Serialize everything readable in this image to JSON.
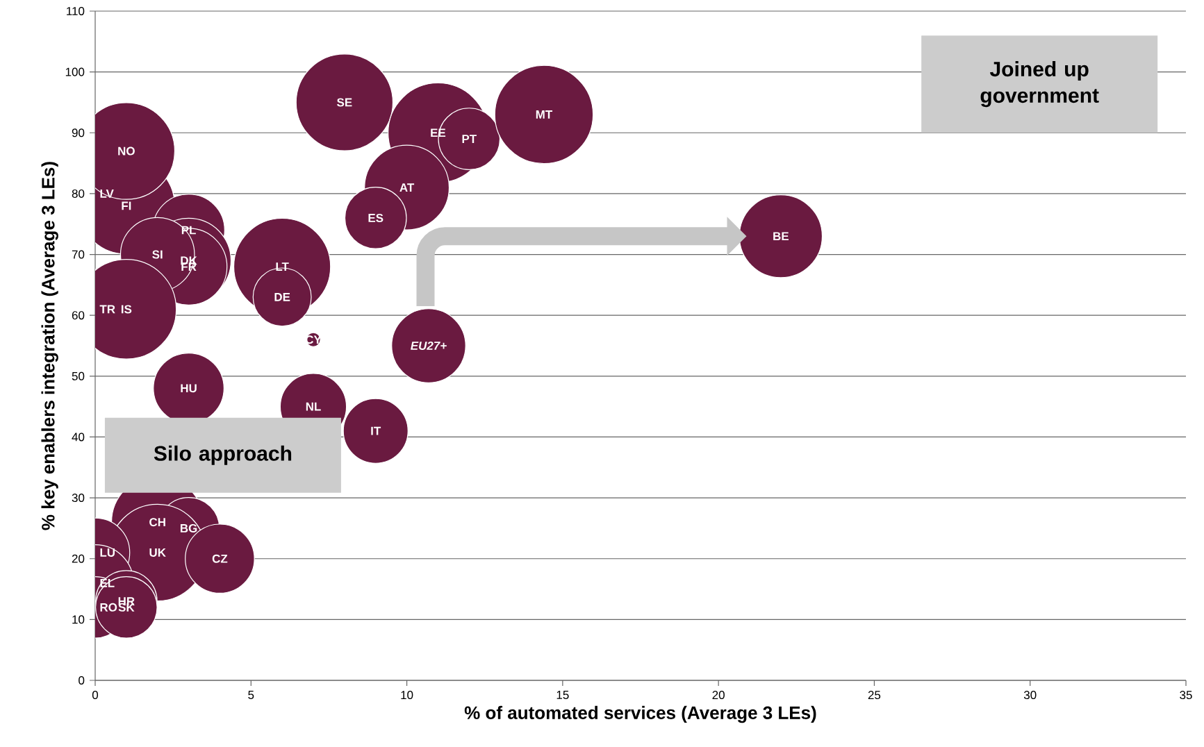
{
  "chart_data": {
    "type": "bubble",
    "xlabel": "% of automated services (Average 3 LEs)",
    "ylabel": "% key enablers integration (Average 3 LEs)",
    "xlim": [
      0,
      35
    ],
    "ylim": [
      0,
      110
    ],
    "xticks": [
      0,
      5,
      10,
      15,
      20,
      25,
      30,
      35
    ],
    "yticks": [
      0,
      10,
      20,
      30,
      40,
      50,
      60,
      70,
      80,
      90,
      100,
      110
    ],
    "grid": "y",
    "series": [
      {
        "color": "#6a1a40",
        "x": [
          8,
          11,
          12,
          14.4,
          10,
          9,
          22,
          0,
          1,
          1,
          3,
          3,
          3,
          2,
          6,
          6,
          0,
          1,
          7,
          10.7,
          3,
          7,
          9,
          2,
          3,
          2,
          4,
          0,
          0,
          0,
          1,
          1
        ],
        "values": [
          95,
          90,
          89,
          93,
          81,
          76,
          73,
          80,
          78,
          87,
          74,
          69,
          68,
          70,
          68,
          63,
          61,
          61,
          56,
          55,
          48,
          45,
          41,
          26,
          25,
          21,
          20,
          21,
          16,
          12,
          13,
          12
        ],
        "sizes": [
          0.94,
          1,
          0.38,
          0.97,
          0.72,
          0.38,
          0.69,
          0.66,
          0.94,
          0.94,
          0.52,
          0.72,
          0.59,
          0.55,
          0.94,
          0.34,
          0.64,
          1,
          0.02,
          0.55,
          0.5,
          0.44,
          0.42,
          0.85,
          0.38,
          0.94,
          0.48,
          0.48,
          0.59,
          0.38,
          0.38,
          0.38
        ]
      }
    ],
    "annotations": [
      {
        "text": "SE",
        "x": 8,
        "y": 95
      },
      {
        "text": "EE",
        "x": 11,
        "y": 90
      },
      {
        "text": "PT",
        "x": 12,
        "y": 89
      },
      {
        "text": "MT",
        "x": 14.4,
        "y": 93
      },
      {
        "text": "AT",
        "x": 10,
        "y": 81
      },
      {
        "text": "ES",
        "x": 9,
        "y": 76
      },
      {
        "text": "BE",
        "x": 22,
        "y": 73
      },
      {
        "text": "LV",
        "x": 0,
        "y": 80
      },
      {
        "text": "FI",
        "x": 1,
        "y": 78
      },
      {
        "text": "NO",
        "x": 1,
        "y": 87
      },
      {
        "text": "PL",
        "x": 3,
        "y": 74
      },
      {
        "text": "DK",
        "x": 3,
        "y": 69
      },
      {
        "text": "FR",
        "x": 3,
        "y": 68
      },
      {
        "text": "SI",
        "x": 2,
        "y": 70
      },
      {
        "text": "LT",
        "x": 6,
        "y": 68
      },
      {
        "text": "DE",
        "x": 6,
        "y": 63
      },
      {
        "text": "TR",
        "x": 0,
        "y": 61
      },
      {
        "text": "IS",
        "x": 1,
        "y": 61
      },
      {
        "text": "CY",
        "x": 7,
        "y": 56
      },
      {
        "text": "*EU27+*",
        "x": 10.7,
        "y": 55
      },
      {
        "text": "HU",
        "x": 3,
        "y": 48
      },
      {
        "text": "NL",
        "x": 7,
        "y": 45
      },
      {
        "text": "IT",
        "x": 9,
        "y": 41
      },
      {
        "text": "CH",
        "x": 2,
        "y": 26
      },
      {
        "text": "BG",
        "x": 3,
        "y": 25
      },
      {
        "text": "UK",
        "x": 2,
        "y": 21
      },
      {
        "text": "CZ",
        "x": 4,
        "y": 20
      },
      {
        "text": "LU",
        "x": 0,
        "y": 21
      },
      {
        "text": "EL",
        "x": 0,
        "y": 16
      },
      {
        "text": "RO",
        "x": 0,
        "y": 12
      },
      {
        "text": "HR",
        "x": 1,
        "y": 13
      },
      {
        "text": "SK",
        "x": 1,
        "y": 12
      },
      "Joined up government",
      "Silo approach"
    ]
  }
}
